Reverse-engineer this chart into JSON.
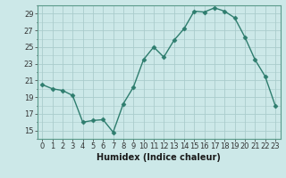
{
  "x": [
    0,
    1,
    2,
    3,
    4,
    5,
    6,
    7,
    8,
    9,
    10,
    11,
    12,
    13,
    14,
    15,
    16,
    17,
    18,
    19,
    20,
    21,
    22,
    23
  ],
  "y": [
    20.5,
    20.0,
    19.8,
    19.2,
    16.0,
    16.2,
    16.3,
    14.8,
    18.2,
    20.2,
    23.5,
    25.0,
    23.8,
    25.8,
    27.2,
    29.3,
    29.2,
    29.7,
    29.3,
    28.5,
    26.2,
    23.5,
    21.5,
    18.0
  ],
  "line_color": "#2e7d6e",
  "marker": "D",
  "marker_size": 2.5,
  "bg_color": "#cce8e8",
  "grid_color": "#aacccc",
  "xlabel": "Humidex (Indice chaleur)",
  "xlabel_fontsize": 7,
  "tick_fontsize": 6,
  "ylim": [
    14,
    30
  ],
  "yticks": [
    15,
    17,
    19,
    21,
    23,
    25,
    27,
    29
  ],
  "xticks": [
    0,
    1,
    2,
    3,
    4,
    5,
    6,
    7,
    8,
    9,
    10,
    11,
    12,
    13,
    14,
    15,
    16,
    17,
    18,
    19,
    20,
    21,
    22,
    23
  ],
  "linewidth": 1.0
}
